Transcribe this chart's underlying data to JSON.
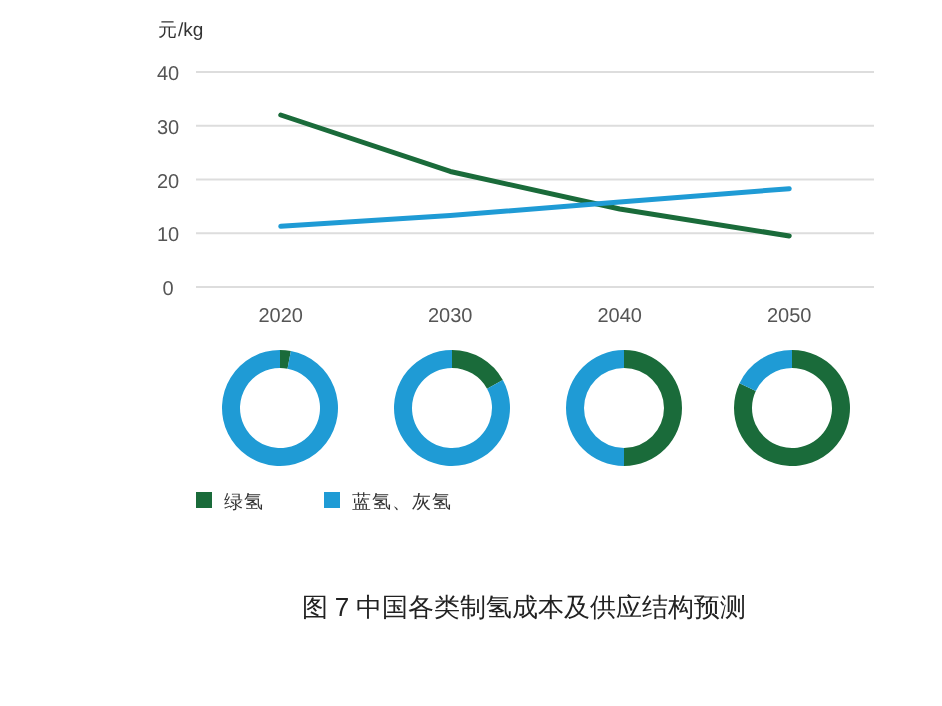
{
  "chart_data": [
    {
      "type": "line",
      "title": "图 7 中国各类制氢成本及供应结构预测",
      "ylabel": "元/kg",
      "categories": [
        "2020",
        "2030",
        "2040",
        "2050"
      ],
      "ylim": [
        0,
        40
      ],
      "yticks": [
        0,
        10,
        20,
        30,
        40
      ],
      "grid": "y",
      "legend": "bottom",
      "series": [
        {
          "name": "绿氢",
          "color": "#1a6b3a",
          "values": [
            32,
            21.5,
            14.5,
            9.5
          ]
        },
        {
          "name": "蓝氢、灰氢",
          "color": "#1f9bd5",
          "values": [
            11.3,
            13.3,
            15.8,
            18.3
          ]
        }
      ]
    },
    {
      "type": "donut",
      "categories": [
        null,
        null
      ],
      "values": [
        3,
        97
      ],
      "colors": [
        "#1a6b3a",
        "#1f9bd5"
      ]
    },
    {
      "type": "donut",
      "categories": [
        null,
        null
      ],
      "values": [
        17,
        83
      ],
      "colors": [
        "#1a6b3a",
        "#1f9bd5"
      ]
    },
    {
      "type": "donut",
      "categories": [
        null,
        null
      ],
      "values": [
        50,
        50
      ],
      "colors": [
        "#1a6b3a",
        "#1f9bd5"
      ]
    },
    {
      "type": "donut",
      "categories": [
        null,
        null
      ],
      "values": [
        82,
        18
      ],
      "colors": [
        "#1a6b3a",
        "#1f9bd5"
      ]
    }
  ]
}
